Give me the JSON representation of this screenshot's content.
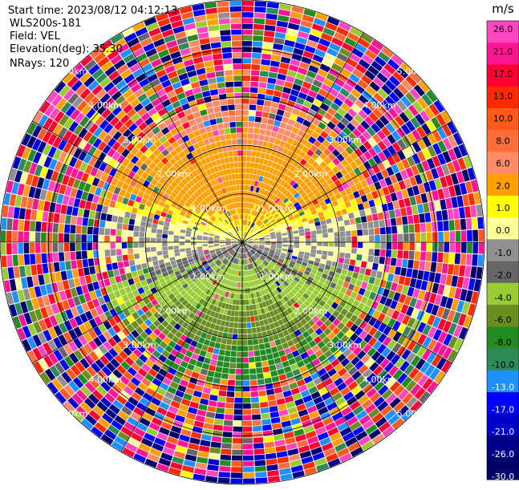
{
  "chart_data": {
    "type": "heatmap",
    "projection": "polar-ppi",
    "header": {
      "start_time": "Start time: 2023/08/12 04:12:13",
      "instrument": "WLS200s-181",
      "field": "Field: VEL",
      "elevation": "Elevation(deg): 35.30",
      "nrays": "NRays: 120"
    },
    "n_rays": 120,
    "n_gates": 42,
    "max_range_km": 5,
    "range_ring_labels": [
      "1.00km",
      "2.00km",
      "3.00km",
      "4.00km",
      "5.00km"
    ],
    "colorbar": {
      "unit": "m/s",
      "tick_labels": [
        "26.0",
        "21.0",
        "17.0",
        "13.0",
        "10.0",
        "8.0",
        "6.0",
        "2.0",
        "1.0",
        "0.0",
        "-1.0",
        "-2.0",
        "-4.0",
        "-6.0",
        "-8.0",
        "-10.0",
        "-13.0",
        "-17.0",
        "-21.0",
        "-26.0",
        "-30.0"
      ],
      "bins": [
        {
          "from": 26,
          "to": 30,
          "color": "#ff45c0"
        },
        {
          "from": 21,
          "to": 26,
          "color": "#ff1493"
        },
        {
          "from": 17,
          "to": 21,
          "color": "#ff0033"
        },
        {
          "from": 13,
          "to": 17,
          "color": "#ff2a00"
        },
        {
          "from": 10,
          "to": 13,
          "color": "#ff5a1a"
        },
        {
          "from": 8,
          "to": 10,
          "color": "#ff6d3a"
        },
        {
          "from": 6,
          "to": 8,
          "color": "#ff8a66"
        },
        {
          "from": 2,
          "to": 6,
          "color": "#ff9f00"
        },
        {
          "from": 1,
          "to": 2,
          "color": "#ffff00"
        },
        {
          "from": 0,
          "to": 1,
          "color": "#ffff99"
        },
        {
          "from": -1,
          "to": 0,
          "color": "#909090"
        },
        {
          "from": -2,
          "to": -1,
          "color": "#666666"
        },
        {
          "from": -4,
          "to": -2,
          "color": "#99cc33"
        },
        {
          "from": -6,
          "to": -4,
          "color": "#6b8e23"
        },
        {
          "from": -8,
          "to": -6,
          "color": "#228b22"
        },
        {
          "from": -10,
          "to": -8,
          "color": "#2e8b57"
        },
        {
          "from": -13,
          "to": -10,
          "color": "#1e90ff"
        },
        {
          "from": -17,
          "to": -13,
          "color": "#0000ff"
        },
        {
          "from": -21,
          "to": -17,
          "color": "#0000cd"
        },
        {
          "from": -26,
          "to": -21,
          "color": "#00008b"
        },
        {
          "from": -30,
          "to": -26,
          "color": "#000066"
        }
      ]
    }
  }
}
